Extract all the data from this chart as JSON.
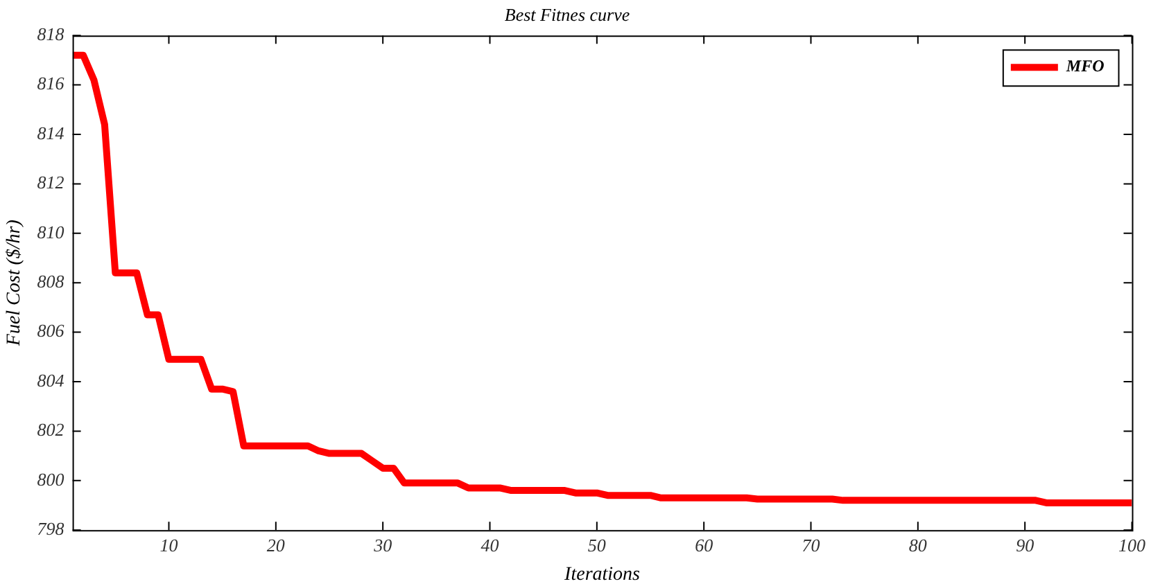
{
  "chart_data": {
    "type": "line",
    "title": "Best Fitnes curve",
    "xlabel": "Iterations",
    "ylabel": "Fuel Cost ($/hr)",
    "x": [
      1,
      2,
      3,
      4,
      5,
      6,
      7,
      8,
      9,
      10,
      11,
      12,
      13,
      14,
      15,
      16,
      17,
      20,
      23,
      24,
      25,
      28,
      29,
      30,
      31,
      32,
      37,
      38,
      41,
      42,
      47,
      48,
      50,
      51,
      55,
      56,
      64,
      65,
      72,
      73,
      91,
      92,
      100
    ],
    "series": [
      {
        "name": "MFO",
        "color": "#ff0000",
        "values": [
          817.2,
          817.2,
          816.2,
          814.4,
          808.4,
          808.4,
          808.4,
          806.7,
          806.7,
          804.9,
          804.9,
          804.9,
          804.9,
          803.7,
          803.7,
          803.6,
          801.4,
          801.4,
          801.4,
          801.2,
          801.1,
          801.1,
          800.8,
          800.5,
          800.5,
          799.9,
          799.9,
          799.7,
          799.7,
          799.6,
          799.6,
          799.5,
          799.5,
          799.4,
          799.4,
          799.3,
          799.3,
          799.25,
          799.25,
          799.2,
          799.2,
          799.1,
          799.1
        ]
      }
    ],
    "xlim": [
      1,
      100
    ],
    "xticks": [
      10,
      20,
      30,
      40,
      50,
      60,
      70,
      80,
      90,
      100
    ],
    "ylim": [
      798,
      818
    ],
    "yticks": [
      798,
      800,
      802,
      804,
      806,
      808,
      810,
      812,
      814,
      816,
      818
    ],
    "grid": false,
    "legend": "top right",
    "marker": "none",
    "line_style": "solid"
  }
}
